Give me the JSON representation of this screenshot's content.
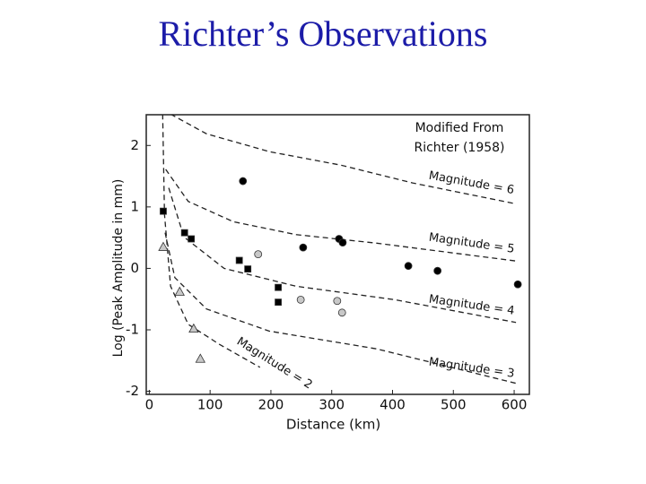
{
  "title": "Richter’s Observations",
  "chart_data": {
    "type": "scatter",
    "annotation": [
      "Modified From",
      "Richter (1958)"
    ],
    "xlabel": "Distance (km)",
    "ylabel": "Log (Peak Amplitude in mm)",
    "xlim": [
      -5,
      625
    ],
    "ylim": [
      -2.05,
      2.5
    ],
    "xticks": [
      0,
      100,
      200,
      300,
      400,
      500,
      600
    ],
    "yticks": [
      -2,
      -1,
      0,
      1,
      2
    ],
    "curves": [
      {
        "name": "Magnitude = 6",
        "x": [
          35,
          94,
          197,
          315,
          433,
          603
        ],
        "values": [
          2.51,
          2.19,
          1.9,
          1.68,
          1.39,
          1.05
        ]
      },
      {
        "name": "Magnitude = 5",
        "x": [
          27,
          64,
          138,
          241,
          374,
          603
        ],
        "values": [
          1.61,
          1.09,
          0.76,
          0.55,
          0.41,
          0.12
        ]
      },
      {
        "name": "Magnitude = 4",
        "x": [
          32,
          57,
          123,
          241,
          404,
          603
        ],
        "values": [
          1.31,
          0.51,
          0.0,
          -0.29,
          -0.51,
          -0.88
        ]
      },
      {
        "name": "Magnitude = 3",
        "x": [
          26,
          42,
          94,
          197,
          374,
          603
        ],
        "values": [
          0.58,
          -0.15,
          -0.66,
          -1.02,
          -1.31,
          -1.87
        ]
      },
      {
        "name": "Magnitude = 2",
        "x": [
          22,
          25,
          35,
          64,
          116,
          182
        ],
        "values": [
          2.51,
          0.88,
          -0.29,
          -0.91,
          -1.24,
          -1.61
        ]
      }
    ],
    "series": [
      {
        "marker": "square",
        "color": "#000000",
        "x": [
          23,
          58,
          69,
          148,
          162,
          212,
          212
        ],
        "values": [
          0.93,
          0.58,
          0.48,
          0.13,
          -0.01,
          -0.31,
          -0.55
        ]
      },
      {
        "marker": "circle",
        "color": "#000000",
        "x": [
          154,
          253,
          312,
          318,
          426,
          474,
          606
        ],
        "values": [
          1.42,
          0.34,
          0.48,
          0.42,
          0.04,
          -0.04,
          -0.26
        ]
      },
      {
        "marker": "circle",
        "color": "#c8c8c8",
        "x": [
          179,
          249,
          309,
          317
        ],
        "values": [
          0.23,
          -0.51,
          -0.53,
          -0.72
        ]
      },
      {
        "marker": "triangle",
        "color": "#c8c8c8",
        "x": [
          23,
          50,
          73,
          84
        ],
        "values": [
          0.35,
          -0.38,
          -0.98,
          -1.47
        ]
      }
    ]
  }
}
